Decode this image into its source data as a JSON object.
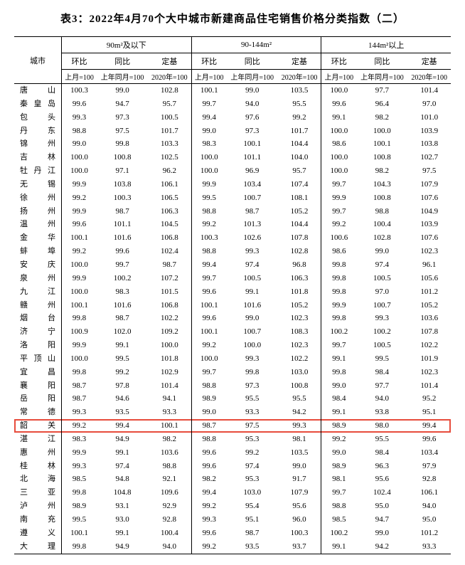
{
  "title": "表3：2022年4月70个大中城市新建商品住宅销售价格分类指数（二）",
  "header": {
    "city": "城市",
    "groups": [
      "90m²及以下",
      "90-144m²",
      "144m²以上"
    ],
    "sub": [
      "环比",
      "同比",
      "定基"
    ],
    "base": [
      "上月=100",
      "上年同月=100",
      "2020年=100"
    ]
  },
  "highlight_index": 25,
  "highlight_color": "#e74c3c",
  "rows": [
    {
      "c": "唐　山",
      "v": [
        "100.3",
        "99.0",
        "102.8",
        "100.1",
        "99.0",
        "103.5",
        "100.0",
        "97.7",
        "101.4"
      ]
    },
    {
      "c": "秦皇岛",
      "v": [
        "99.6",
        "94.7",
        "95.7",
        "99.7",
        "94.0",
        "95.5",
        "99.6",
        "96.4",
        "97.0"
      ]
    },
    {
      "c": "包　头",
      "v": [
        "99.3",
        "97.3",
        "100.5",
        "99.4",
        "97.6",
        "99.2",
        "99.1",
        "98.2",
        "101.0"
      ]
    },
    {
      "c": "丹　东",
      "v": [
        "98.8",
        "97.5",
        "101.7",
        "99.0",
        "97.3",
        "101.7",
        "100.0",
        "100.0",
        "103.9"
      ]
    },
    {
      "c": "锦　州",
      "v": [
        "99.0",
        "99.8",
        "103.3",
        "98.3",
        "100.1",
        "104.4",
        "98.6",
        "100.1",
        "103.8"
      ]
    },
    {
      "c": "吉　林",
      "v": [
        "100.0",
        "100.8",
        "102.5",
        "100.0",
        "101.1",
        "104.0",
        "100.0",
        "100.8",
        "102.7"
      ]
    },
    {
      "c": "牡丹江",
      "v": [
        "100.0",
        "97.1",
        "96.2",
        "100.0",
        "96.9",
        "95.7",
        "100.0",
        "98.2",
        "97.5"
      ]
    },
    {
      "c": "无　锡",
      "v": [
        "99.9",
        "103.8",
        "106.1",
        "99.9",
        "103.4",
        "107.4",
        "99.7",
        "104.3",
        "107.9"
      ]
    },
    {
      "c": "徐　州",
      "v": [
        "99.2",
        "100.3",
        "106.5",
        "99.5",
        "100.7",
        "108.1",
        "99.9",
        "100.8",
        "107.6"
      ]
    },
    {
      "c": "扬　州",
      "v": [
        "99.9",
        "98.7",
        "106.3",
        "98.8",
        "98.7",
        "105.2",
        "99.7",
        "98.8",
        "104.9"
      ]
    },
    {
      "c": "温　州",
      "v": [
        "99.6",
        "101.1",
        "104.5",
        "99.2",
        "101.3",
        "104.4",
        "99.2",
        "100.4",
        "103.9"
      ]
    },
    {
      "c": "金　华",
      "v": [
        "100.1",
        "101.6",
        "106.8",
        "100.3",
        "102.6",
        "107.8",
        "100.6",
        "102.8",
        "107.6"
      ]
    },
    {
      "c": "蚌　埠",
      "v": [
        "99.2",
        "99.6",
        "102.4",
        "98.8",
        "99.3",
        "102.8",
        "98.6",
        "99.0",
        "102.3"
      ]
    },
    {
      "c": "安　庆",
      "v": [
        "100.0",
        "99.7",
        "98.7",
        "99.4",
        "97.4",
        "96.8",
        "99.8",
        "97.4",
        "96.1"
      ]
    },
    {
      "c": "泉　州",
      "v": [
        "99.9",
        "100.2",
        "107.2",
        "99.7",
        "100.5",
        "106.3",
        "99.8",
        "100.5",
        "105.6"
      ]
    },
    {
      "c": "九　江",
      "v": [
        "100.0",
        "98.3",
        "101.5",
        "99.6",
        "99.1",
        "101.8",
        "99.8",
        "97.0",
        "101.2"
      ]
    },
    {
      "c": "赣　州",
      "v": [
        "100.1",
        "101.6",
        "106.8",
        "100.1",
        "101.6",
        "105.2",
        "99.9",
        "100.7",
        "105.2"
      ]
    },
    {
      "c": "烟　台",
      "v": [
        "99.8",
        "98.7",
        "102.2",
        "99.6",
        "99.0",
        "102.3",
        "99.8",
        "99.3",
        "103.6"
      ]
    },
    {
      "c": "济　宁",
      "v": [
        "100.9",
        "102.0",
        "109.2",
        "100.1",
        "100.7",
        "108.3",
        "100.2",
        "100.2",
        "107.8"
      ]
    },
    {
      "c": "洛　阳",
      "v": [
        "99.9",
        "99.1",
        "100.0",
        "99.2",
        "100.0",
        "102.3",
        "99.7",
        "100.5",
        "102.2"
      ]
    },
    {
      "c": "平顶山",
      "v": [
        "100.0",
        "99.5",
        "101.8",
        "100.0",
        "99.3",
        "102.2",
        "99.1",
        "99.5",
        "101.9"
      ]
    },
    {
      "c": "宜　昌",
      "v": [
        "99.8",
        "99.2",
        "102.9",
        "99.7",
        "99.8",
        "103.0",
        "99.8",
        "98.4",
        "102.3"
      ]
    },
    {
      "c": "襄　阳",
      "v": [
        "98.7",
        "97.8",
        "101.4",
        "98.8",
        "97.3",
        "100.8",
        "99.0",
        "97.7",
        "101.4"
      ]
    },
    {
      "c": "岳　阳",
      "v": [
        "98.7",
        "94.6",
        "94.1",
        "98.9",
        "95.5",
        "95.5",
        "98.4",
        "94.0",
        "95.2"
      ]
    },
    {
      "c": "常　德",
      "v": [
        "99.3",
        "93.5",
        "93.3",
        "99.0",
        "93.3",
        "94.2",
        "99.1",
        "93.8",
        "95.1"
      ]
    },
    {
      "c": "韶　关",
      "v": [
        "99.2",
        "99.4",
        "100.1",
        "98.7",
        "97.5",
        "99.3",
        "98.9",
        "98.0",
        "99.4"
      ]
    },
    {
      "c": "湛　江",
      "v": [
        "98.3",
        "94.9",
        "98.2",
        "98.8",
        "95.3",
        "98.1",
        "99.2",
        "95.5",
        "99.6"
      ]
    },
    {
      "c": "惠　州",
      "v": [
        "99.9",
        "99.1",
        "103.6",
        "99.6",
        "99.2",
        "103.5",
        "99.0",
        "98.4",
        "103.4"
      ]
    },
    {
      "c": "桂　林",
      "v": [
        "99.3",
        "97.4",
        "98.8",
        "99.6",
        "97.4",
        "99.0",
        "98.9",
        "96.3",
        "97.9"
      ]
    },
    {
      "c": "北　海",
      "v": [
        "98.5",
        "94.8",
        "92.1",
        "98.2",
        "95.3",
        "91.7",
        "98.1",
        "95.6",
        "92.8"
      ]
    },
    {
      "c": "三　亚",
      "v": [
        "99.8",
        "104.8",
        "109.6",
        "99.4",
        "103.0",
        "107.9",
        "99.7",
        "102.4",
        "106.1"
      ]
    },
    {
      "c": "泸　州",
      "v": [
        "98.9",
        "93.1",
        "92.9",
        "99.2",
        "95.4",
        "95.6",
        "98.8",
        "95.0",
        "94.0"
      ]
    },
    {
      "c": "南　充",
      "v": [
        "99.5",
        "93.0",
        "92.8",
        "99.3",
        "95.1",
        "96.0",
        "98.5",
        "94.7",
        "95.0"
      ]
    },
    {
      "c": "遵　义",
      "v": [
        "100.1",
        "99.1",
        "100.4",
        "99.6",
        "98.7",
        "100.3",
        "100.2",
        "99.0",
        "101.2"
      ]
    },
    {
      "c": "大　理",
      "v": [
        "99.8",
        "94.9",
        "94.0",
        "99.2",
        "93.5",
        "93.7",
        "99.1",
        "94.2",
        "93.3"
      ]
    }
  ]
}
